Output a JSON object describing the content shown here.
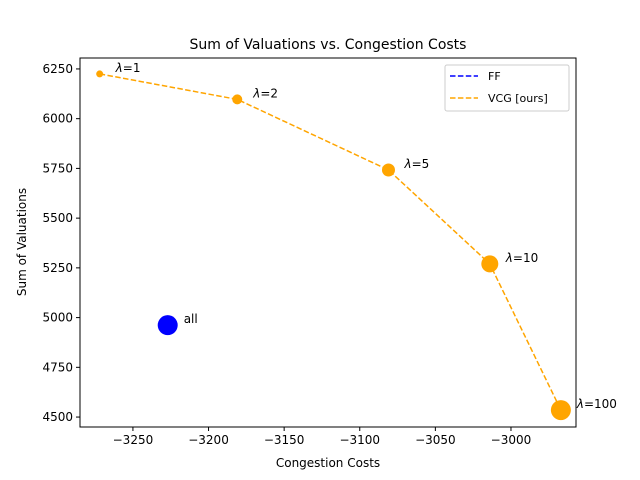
{
  "chart_data": {
    "type": "scatter",
    "title": "Sum of Valuations vs. Congestion Costs",
    "xlabel": "Congestion Costs",
    "ylabel": "Sum of Valuations",
    "xlim": [
      -3285,
      -2957
    ],
    "ylim": [
      4450,
      6305
    ],
    "xticks": [
      -3250,
      -3200,
      -3150,
      -3100,
      -3050,
      -3000
    ],
    "yticks": [
      4500,
      4750,
      5000,
      5250,
      5500,
      5750,
      6000,
      6250
    ],
    "xtick_labels": [
      "−3250",
      "−3200",
      "−3150",
      "−3100",
      "−3050",
      "−3000"
    ],
    "ytick_labels": [
      "4500",
      "4750",
      "5000",
      "5250",
      "5500",
      "5750",
      "6000",
      "6250"
    ],
    "grid": false,
    "legend_position": "top-right",
    "series": [
      {
        "name": "FF",
        "color": "#0000ff",
        "linestyle": "dashed",
        "points": [
          {
            "x": -3227,
            "y": 4962,
            "label": "all",
            "size": 1.0
          }
        ]
      },
      {
        "name": "VCG [ours]",
        "color": "#ffa500",
        "linestyle": "dashed",
        "points": [
          {
            "x": -3272,
            "y": 6225,
            "label": "λ=1",
            "size": 0.35
          },
          {
            "x": -3181,
            "y": 6097,
            "label": "λ=2",
            "size": 0.5
          },
          {
            "x": -3081,
            "y": 5742,
            "label": "λ=5",
            "size": 0.65
          },
          {
            "x": -3014,
            "y": 5270,
            "label": "λ=10",
            "size": 0.85
          },
          {
            "x": -2967,
            "y": 4535,
            "label": "λ=100",
            "size": 1.0
          }
        ]
      }
    ]
  }
}
